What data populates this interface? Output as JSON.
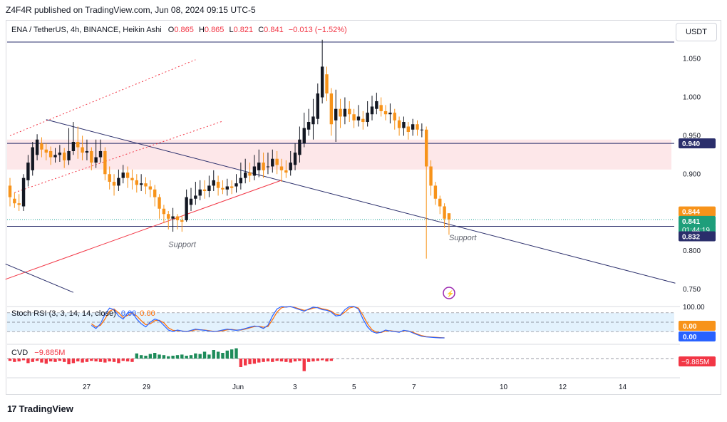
{
  "publisher": "Z4F4R published on TradingView.com, Jun 08, 2024 09:15 UTC-5",
  "legend": {
    "symbol": "ENA / TetherUS, 4h, BINANCE, Heikin Ashi",
    "o_label": "O",
    "o": "0.865",
    "h_label": "H",
    "h": "0.865",
    "l_label": "L",
    "l": "0.821",
    "c_label": "C",
    "c": "0.841",
    "change": "−0.013 (−1.52%)"
  },
  "currency_button": "USDT",
  "brand": "TradingView",
  "colors": {
    "up": "#131722",
    "down": "#f7931a",
    "bear_line": "#f23645",
    "trend_line": "#2a2e6b",
    "zone": "#fde7e9",
    "stoch_k": "#2962ff",
    "stoch_d": "#ff6d00",
    "cvd_up": "#1e8c5a",
    "cvd_down": "#f23645"
  },
  "chart_data": {
    "type": "candlestick",
    "style": "Heikin Ashi",
    "title": "ENA / TetherUS, 4h, BINANCE, Heikin Ashi",
    "y_ticks": [
      "1.050",
      "1.000",
      "0.950",
      "0.900",
      "0.850",
      "0.800",
      "0.750"
    ],
    "x_ticks": [
      "27",
      "29",
      "Jun",
      "3",
      "5",
      "7",
      "10",
      "12",
      "14"
    ],
    "y_range": [
      0.735,
      1.085
    ],
    "price_labels": [
      {
        "text": "0.940",
        "value": 0.94,
        "kind": "level"
      },
      {
        "text": "0.844",
        "value": 0.844,
        "kind": "current"
      },
      {
        "text": "0.841",
        "value": 0.841,
        "kind": "close"
      },
      {
        "text": "01:44:19",
        "value": 0.841,
        "kind": "countdown"
      },
      {
        "text": "0.832",
        "value": 0.832,
        "kind": "level"
      }
    ],
    "horizontal_levels": [
      1.072,
      0.94,
      0.832
    ],
    "resistance_zone": [
      0.906,
      0.945
    ],
    "annotations": [
      "Support",
      "Support"
    ],
    "candles": [
      [
        0.885,
        0.87,
        0.895,
        0.858
      ],
      [
        0.868,
        0.862,
        0.876,
        0.856
      ],
      [
        0.862,
        0.86,
        0.874,
        0.852
      ],
      [
        0.858,
        0.895,
        0.9,
        0.852
      ],
      [
        0.892,
        0.915,
        0.925,
        0.884
      ],
      [
        0.905,
        0.935,
        0.942,
        0.898
      ],
      [
        0.925,
        0.945,
        0.952,
        0.918
      ],
      [
        0.94,
        0.932,
        0.948,
        0.922
      ],
      [
        0.932,
        0.928,
        0.94,
        0.918
      ],
      [
        0.93,
        0.922,
        0.936,
        0.912
      ],
      [
        0.922,
        0.925,
        0.934,
        0.915
      ],
      [
        0.925,
        0.928,
        0.938,
        0.916
      ],
      [
        0.928,
        0.918,
        0.934,
        0.908
      ],
      [
        0.918,
        0.93,
        0.96,
        0.912
      ],
      [
        0.93,
        0.942,
        0.968,
        0.925
      ],
      [
        0.942,
        0.935,
        0.962,
        0.92
      ],
      [
        0.935,
        0.928,
        0.95,
        0.918
      ],
      [
        0.928,
        0.93,
        0.945,
        0.918
      ],
      [
        0.93,
        0.915,
        0.935,
        0.905
      ],
      [
        0.915,
        0.922,
        0.945,
        0.908
      ],
      [
        0.922,
        0.93,
        0.945,
        0.915
      ],
      [
        0.93,
        0.9,
        0.935,
        0.892
      ],
      [
        0.9,
        0.89,
        0.91,
        0.88
      ],
      [
        0.89,
        0.885,
        0.9,
        0.872
      ],
      [
        0.885,
        0.895,
        0.906,
        0.878
      ],
      [
        0.895,
        0.902,
        0.912,
        0.888
      ],
      [
        0.902,
        0.895,
        0.91,
        0.882
      ],
      [
        0.895,
        0.892,
        0.906,
        0.88
      ],
      [
        0.892,
        0.886,
        0.9,
        0.876
      ],
      [
        0.886,
        0.888,
        0.9,
        0.878
      ],
      [
        0.888,
        0.884,
        0.896,
        0.874
      ],
      [
        0.884,
        0.88,
        0.892,
        0.87
      ],
      [
        0.88,
        0.87,
        0.886,
        0.858
      ],
      [
        0.87,
        0.855,
        0.874,
        0.842
      ],
      [
        0.855,
        0.848,
        0.86,
        0.836
      ],
      [
        0.848,
        0.842,
        0.852,
        0.828
      ],
      [
        0.842,
        0.845,
        0.856,
        0.825
      ],
      [
        0.845,
        0.84,
        0.848,
        0.828
      ],
      [
        0.84,
        0.838,
        0.846,
        0.825
      ],
      [
        0.84,
        0.87,
        0.88,
        0.838
      ],
      [
        0.86,
        0.868,
        0.882,
        0.852
      ],
      [
        0.868,
        0.872,
        0.89,
        0.86
      ],
      [
        0.872,
        0.88,
        0.892,
        0.866
      ],
      [
        0.88,
        0.878,
        0.892,
        0.868
      ],
      [
        0.878,
        0.885,
        0.898,
        0.87
      ],
      [
        0.885,
        0.892,
        0.905,
        0.878
      ],
      [
        0.89,
        0.882,
        0.898,
        0.872
      ],
      [
        0.882,
        0.88,
        0.892,
        0.874
      ],
      [
        0.88,
        0.884,
        0.894,
        0.872
      ],
      [
        0.884,
        0.882,
        0.892,
        0.874
      ],
      [
        0.884,
        0.888,
        0.9,
        0.876
      ],
      [
        0.888,
        0.895,
        0.915,
        0.88
      ],
      [
        0.895,
        0.902,
        0.92,
        0.888
      ],
      [
        0.902,
        0.898,
        0.915,
        0.89
      ],
      [
        0.898,
        0.91,
        0.925,
        0.892
      ],
      [
        0.905,
        0.915,
        0.932,
        0.896
      ],
      [
        0.915,
        0.905,
        0.928,
        0.895
      ],
      [
        0.91,
        0.91,
        0.928,
        0.9
      ],
      [
        0.91,
        0.92,
        0.932,
        0.902
      ],
      [
        0.92,
        0.912,
        0.93,
        0.9
      ],
      [
        0.91,
        0.905,
        0.92,
        0.89
      ],
      [
        0.905,
        0.902,
        0.918,
        0.895
      ],
      [
        0.905,
        0.915,
        0.93,
        0.898
      ],
      [
        0.912,
        0.928,
        0.94,
        0.905
      ],
      [
        0.925,
        0.945,
        0.962,
        0.915
      ],
      [
        0.94,
        0.96,
        0.98,
        0.935
      ],
      [
        0.958,
        0.968,
        0.985,
        0.95
      ],
      [
        0.965,
        0.975,
        0.998,
        0.945
      ],
      [
        0.972,
        1.005,
        1.018,
        0.965
      ],
      [
        1.0,
        1.04,
        1.075,
        0.992
      ],
      [
        1.03,
        1.005,
        1.04,
        0.995
      ],
      [
        1.005,
        0.965,
        1.012,
        0.95
      ],
      [
        0.97,
        0.985,
        1.01,
        0.942
      ],
      [
        0.985,
        0.975,
        0.998,
        0.96
      ],
      [
        0.975,
        0.985,
        1.0,
        0.965
      ],
      [
        0.985,
        0.978,
        0.995,
        0.968
      ],
      [
        0.978,
        0.97,
        0.985,
        0.96
      ],
      [
        0.97,
        0.975,
        0.99,
        0.962
      ],
      [
        0.972,
        0.968,
        0.982,
        0.958
      ],
      [
        0.968,
        0.98,
        0.995,
        0.962
      ],
      [
        0.978,
        0.988,
        1.002,
        0.97
      ],
      [
        0.985,
        0.995,
        1.006,
        0.978
      ],
      [
        0.99,
        0.982,
        1.0,
        0.975
      ],
      [
        0.982,
        0.978,
        0.99,
        0.97
      ],
      [
        0.978,
        0.98,
        0.992,
        0.966
      ],
      [
        0.98,
        0.97,
        0.985,
        0.958
      ],
      [
        0.97,
        0.96,
        0.975,
        0.95
      ],
      [
        0.96,
        0.968,
        0.975,
        0.95
      ],
      [
        0.962,
        0.955,
        0.968,
        0.945
      ],
      [
        0.958,
        0.965,
        0.972,
        0.95
      ],
      [
        0.965,
        0.958,
        0.97,
        0.95
      ],
      [
        0.958,
        0.958,
        0.966,
        0.948
      ],
      [
        0.958,
        0.91,
        0.962,
        0.79
      ],
      [
        0.91,
        0.885,
        0.918,
        0.872
      ],
      [
        0.885,
        0.868,
        0.89,
        0.86
      ],
      [
        0.868,
        0.858,
        0.872,
        0.848
      ],
      [
        0.858,
        0.842,
        0.862,
        0.83
      ],
      [
        0.849,
        0.841,
        0.849,
        0.821
      ]
    ],
    "stoch_rsi": {
      "label": "Stoch RSI (3, 3, 14, 14, close)",
      "k_text": "0.00",
      "d_text": "0.00",
      "y_ticks": [
        "100.00",
        "0.00",
        "0.00"
      ],
      "upper": 80,
      "lower": 20,
      "k": [
        40,
        30,
        45,
        75,
        95,
        90,
        70,
        60,
        80,
        82,
        60,
        45,
        35,
        50,
        60,
        55,
        40,
        25,
        20,
        25,
        22,
        20,
        24,
        28,
        26,
        24,
        22,
        20,
        22,
        25,
        28,
        26,
        24,
        26,
        30,
        34,
        38,
        36,
        30,
        40,
        70,
        92,
        100,
        98,
        100,
        95,
        90,
        85,
        92,
        98,
        96,
        90,
        88,
        82,
        70,
        72,
        90,
        100,
        100,
        92,
        60,
        35,
        20,
        15,
        18,
        25,
        22,
        20,
        18,
        24,
        22,
        16,
        10,
        5,
        3,
        2,
        1,
        0,
        0
      ],
      "d": [
        45,
        35,
        40,
        60,
        85,
        92,
        80,
        65,
        72,
        80,
        70,
        55,
        42,
        45,
        55,
        56,
        48,
        32,
        24,
        23,
        22,
        21,
        22,
        26,
        26,
        25,
        23,
        21,
        21,
        23,
        26,
        27,
        25,
        25,
        28,
        32,
        36,
        37,
        34,
        36,
        58,
        82,
        96,
        99,
        99,
        97,
        92,
        88,
        90,
        95,
        97,
        93,
        90,
        85,
        75,
        72,
        82,
        95,
        99,
        95,
        72,
        45,
        26,
        18,
        17,
        22,
        23,
        21,
        19,
        22,
        22,
        18,
        12,
        7,
        4,
        3,
        2,
        1,
        0
      ]
    },
    "cvd": {
      "label": "CVD",
      "value_text": "−9.885M",
      "values": [
        -0.4,
        -0.6,
        -0.5,
        -0.3,
        -0.8,
        -0.6,
        -0.4,
        -0.7,
        -0.9,
        -0.5,
        -0.6,
        -0.4,
        -0.6,
        -1.0,
        -0.8,
        -0.5,
        -0.7,
        -0.6,
        -0.4,
        -0.5,
        -0.6,
        -0.7,
        -0.5,
        -0.6,
        -0.8,
        -0.4,
        -0.5,
        -0.6,
        0.9,
        0.6,
        0.5,
        0.8,
        1.0,
        0.7,
        0.6,
        0.4,
        0.5,
        0.6,
        0.7,
        0.5,
        0.6,
        0.9,
        0.8,
        1.2,
        0.7,
        1.5,
        1.2,
        1.0,
        1.4,
        1.6,
        1.8,
        -1.5,
        -1.2,
        -1.0,
        -0.9,
        -0.7,
        -0.6,
        -0.5,
        -0.6,
        -0.4,
        -0.5,
        -0.6,
        -0.7,
        -0.5,
        -0.4,
        -2.2,
        -0.6,
        -0.5,
        -0.4,
        -0.3,
        -0.5,
        -0.4
      ]
    }
  }
}
